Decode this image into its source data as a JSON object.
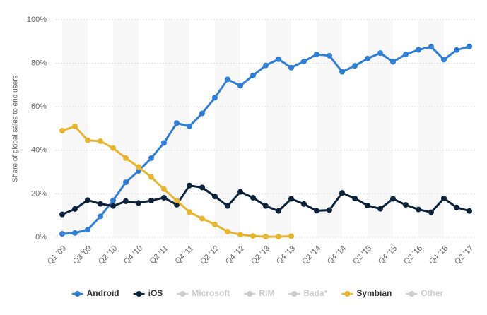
{
  "chart_data": {
    "type": "line",
    "y_label": "Share of global sales to end users",
    "categories": [
      "Q1 '09",
      null,
      "Q3 '09",
      null,
      "Q2 '10",
      null,
      "Q4 '10",
      null,
      "Q2 '11",
      null,
      "Q4 '11",
      null,
      "Q2 '12",
      null,
      "Q4 '12",
      null,
      "Q2 '13",
      null,
      "Q4 '13",
      null,
      "Q2 '14",
      null,
      "Q4 '14",
      null,
      "Q2 '15",
      null,
      "Q4 '15",
      null,
      "Q2 '16",
      null,
      "Q4 '16",
      null,
      "Q2 '17"
    ],
    "ylim": [
      0,
      100
    ],
    "yticks": [
      {
        "value": 0,
        "label": "0%"
      },
      {
        "value": 20,
        "label": "20%"
      },
      {
        "value": 40,
        "label": "40%"
      },
      {
        "value": 60,
        "label": "60%"
      },
      {
        "value": 80,
        "label": "80%"
      },
      {
        "value": 100,
        "label": "100%"
      }
    ],
    "grid": true,
    "legend": "bottom",
    "series": [
      {
        "name": "Android",
        "color": "#2f7ed8",
        "visible": true,
        "values": [
          1.6,
          2,
          3.5,
          9.6,
          17,
          25.3,
          30.5,
          36.4,
          43.4,
          52.5,
          51,
          57,
          64.2,
          72.6,
          69.7,
          74.4,
          79,
          81.9,
          78,
          80.9,
          84.1,
          83.5,
          76.1,
          78.8,
          82.2,
          84.7,
          80.7,
          84.1,
          86.2,
          87.6,
          81.7,
          86.1,
          87.7
        ]
      },
      {
        "name": "iOS",
        "color": "#0d233a",
        "visible": true,
        "values": [
          10.5,
          13,
          17.1,
          15.4,
          14.4,
          16.6,
          15.8,
          16.9,
          18.2,
          15,
          23.8,
          22.9,
          18.8,
          14.4,
          20.9,
          18.2,
          14.4,
          12.1,
          17.7,
          15.3,
          12.2,
          12.5,
          20.4,
          17.9,
          14.6,
          13.1,
          17.7,
          14.9,
          12.8,
          11.5,
          17.9,
          13.7,
          12.1
        ]
      },
      {
        "name": "Microsoft",
        "color": "#cccccc",
        "visible": false,
        "values": [
          null,
          null,
          null,
          null,
          null,
          null,
          null,
          null,
          null,
          null,
          null,
          null,
          null,
          null,
          null,
          null,
          null,
          null,
          null,
          null,
          null,
          null,
          null,
          null,
          null,
          null,
          null,
          null,
          null,
          null,
          null,
          null,
          null
        ]
      },
      {
        "name": "RIM",
        "color": "#cccccc",
        "visible": false,
        "values": [
          null,
          null,
          null,
          null,
          null,
          null,
          null,
          null,
          null,
          null,
          null,
          null,
          null,
          null,
          null,
          null,
          null,
          null,
          null,
          null,
          null,
          null,
          null,
          null,
          null,
          null,
          null,
          null,
          null,
          null,
          null,
          null,
          null
        ]
      },
      {
        "name": "Bada*",
        "color": "#cccccc",
        "visible": false,
        "values": [
          null,
          null,
          null,
          null,
          null,
          null,
          null,
          null,
          null,
          null,
          null,
          null,
          null,
          null,
          null,
          null,
          null,
          null,
          null,
          null,
          null,
          null,
          null,
          null,
          null,
          null,
          null,
          null,
          null,
          null,
          null,
          null,
          null
        ]
      },
      {
        "name": "Symbian",
        "color": "#e7b52f",
        "visible": true,
        "values": [
          49,
          51,
          44.6,
          44.2,
          41,
          36.4,
          32.3,
          27.7,
          22.1,
          16.9,
          11.6,
          8.6,
          5.9,
          2.6,
          1.2,
          0.6,
          0.3,
          0.3,
          0.5,
          null,
          null,
          null,
          null,
          null,
          null,
          null,
          null,
          null,
          null,
          null,
          null,
          null,
          null
        ]
      },
      {
        "name": "Other",
        "color": "#cccccc",
        "visible": false,
        "values": [
          null,
          null,
          null,
          null,
          null,
          null,
          null,
          null,
          null,
          null,
          null,
          null,
          null,
          null,
          null,
          null,
          null,
          null,
          null,
          null,
          null,
          null,
          null,
          null,
          null,
          null,
          null,
          null,
          null,
          null,
          null,
          null,
          null
        ]
      }
    ]
  }
}
